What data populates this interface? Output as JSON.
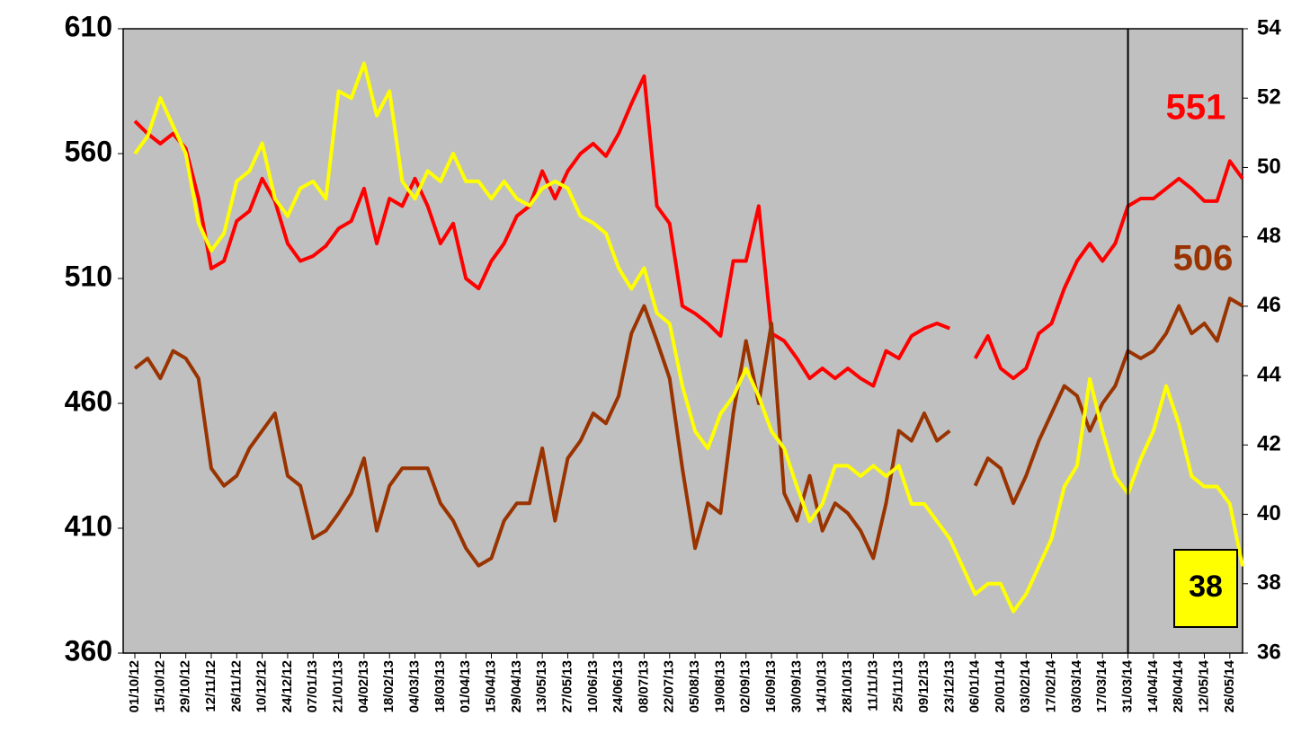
{
  "chart_data": {
    "type": "line",
    "categories": [
      "01/10/12",
      null,
      "15/10/12",
      null,
      "29/10/12",
      null,
      "12/11/12",
      null,
      "26/11/12",
      null,
      "10/12/12",
      null,
      "24/12/12",
      null,
      "07/01/13",
      null,
      "21/01/13",
      null,
      "04/02/13",
      null,
      "18/02/13",
      null,
      "04/03/13",
      null,
      "18/03/13",
      null,
      "01/04/13",
      null,
      "15/04/13",
      null,
      "29/04/13",
      null,
      "13/05/13",
      null,
      "27/05/13",
      null,
      "10/06/13",
      null,
      "24/06/13",
      null,
      "08/07/13",
      null,
      "22/07/13",
      null,
      "05/08/13",
      null,
      "19/08/13",
      null,
      "02/09/13",
      null,
      "16/09/13",
      null,
      "30/09/13",
      null,
      "14/10/13",
      null,
      "28/10/13",
      null,
      "11/11/13",
      null,
      "25/11/13",
      null,
      "09/12/13",
      null,
      "23/12/13",
      null,
      "06/01/14",
      null,
      "20/01/14",
      null,
      "03/02/14",
      null,
      "17/02/14",
      null,
      "03/03/14",
      null,
      "17/03/14",
      null,
      "31/03/14",
      null,
      "14/04/14",
      null,
      "28/04/14",
      null,
      "12/05/14",
      null,
      "26/05/14",
      null
    ],
    "series": [
      {
        "name": null,
        "color": "#ff0000",
        "values": [
          573,
          568,
          564,
          568,
          562,
          542,
          514,
          517,
          533,
          537,
          550,
          541,
          524,
          517,
          519,
          523,
          530,
          533,
          546,
          524,
          542,
          539,
          550,
          539,
          524,
          532,
          510,
          506,
          517,
          524,
          535,
          539,
          553,
          542,
          553,
          560,
          564,
          559,
          568,
          580,
          591,
          539,
          532,
          499,
          496,
          492,
          487,
          517,
          517,
          539,
          488,
          485,
          478,
          470,
          474,
          470,
          474,
          470,
          467,
          481,
          478,
          487,
          490,
          492,
          490,
          null,
          478,
          487,
          474,
          470,
          474,
          488,
          492,
          506,
          517,
          524,
          517,
          524,
          539,
          542,
          542,
          546,
          550,
          546,
          541,
          541,
          557,
          550
        ]
      },
      {
        "name": null,
        "color": "#993300",
        "values": [
          474,
          478,
          470,
          481,
          478,
          470,
          434,
          427,
          431,
          442,
          449,
          456,
          431,
          427,
          406,
          409,
          416,
          424,
          438,
          409,
          427,
          434,
          434,
          434,
          420,
          413,
          402,
          395,
          398,
          413,
          420,
          420,
          442,
          413,
          438,
          445,
          456,
          452,
          463,
          488,
          499,
          485,
          470,
          434,
          402,
          420,
          416,
          456,
          485,
          460,
          492,
          424,
          413,
          431,
          409,
          420,
          416,
          409,
          398,
          420,
          449,
          445,
          456,
          445,
          449,
          null,
          427,
          438,
          434,
          420,
          431,
          445,
          456,
          467,
          463,
          449,
          460,
          467,
          481,
          478,
          481,
          488,
          499,
          488,
          492,
          485,
          502,
          499
        ]
      },
      {
        "name": null,
        "color": "#ffff00",
        "axis": "y2",
        "values": [
          50.4,
          50.9,
          52.0,
          51.2,
          50.4,
          48.4,
          47.6,
          48.1,
          49.6,
          49.9,
          50.7,
          49.1,
          48.6,
          49.4,
          49.6,
          49.1,
          52.2,
          52.0,
          53.0,
          51.5,
          52.2,
          49.6,
          49.1,
          49.9,
          49.6,
          50.4,
          49.6,
          49.6,
          49.1,
          49.6,
          49.1,
          48.9,
          49.4,
          49.6,
          49.4,
          48.6,
          48.4,
          48.1,
          47.1,
          46.5,
          47.1,
          45.8,
          45.5,
          43.7,
          42.4,
          41.9,
          42.9,
          43.4,
          44.2,
          43.4,
          42.4,
          41.9,
          40.8,
          39.8,
          40.3,
          41.4,
          41.4,
          41.1,
          41.4,
          41.1,
          41.4,
          40.3,
          40.3,
          39.8,
          39.3,
          38.5,
          37.7,
          38.0,
          38.0,
          37.2,
          37.7,
          38.5,
          39.3,
          40.8,
          41.4,
          43.9,
          42.4,
          41.1,
          40.6,
          41.6,
          42.4,
          43.7,
          42.6,
          41.1,
          40.8,
          40.8,
          40.3,
          38.5
        ]
      }
    ],
    "ylim": [
      360,
      610
    ],
    "yticks": [
      360,
      410,
      460,
      510,
      560,
      610
    ],
    "y2lim": [
      36,
      54
    ],
    "y2ticks": [
      36,
      38,
      40,
      42,
      44,
      46,
      48,
      50,
      52,
      54
    ],
    "vline_index": 78,
    "annotations": [
      {
        "text": "551",
        "color": "#ff0000"
      },
      {
        "text": "506",
        "color": "#993300"
      },
      {
        "text": "38",
        "color": "#000000",
        "box": "#ffff00"
      }
    ],
    "background": "#c0c0c0"
  }
}
